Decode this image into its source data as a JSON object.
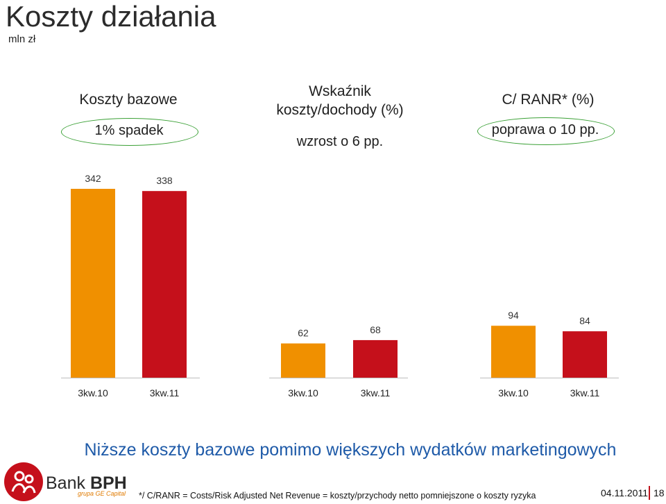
{
  "page": {
    "title": "Koszty działania",
    "unit": "mln zł"
  },
  "panels": [
    {
      "title_line1": "Koszty bazowe",
      "title_line2": "",
      "note": "1% spadek"
    },
    {
      "title_line1": "Wskaźnik",
      "title_line2": "koszty/dochody (%)",
      "note": "wzrost o 6 pp."
    },
    {
      "title_line1": "C/ RANR* (%)",
      "title_line2": "",
      "note": "poprawa o 10 pp."
    }
  ],
  "colors": {
    "orange": "#f09000",
    "red": "#c5101b",
    "highlight_ellipse": "#3aa035",
    "headline": "#1e5aa8"
  },
  "chart_data": [
    {
      "type": "bar",
      "categories": [
        "3kw.10",
        "3kw.11"
      ],
      "values": [
        342,
        338
      ],
      "ylim": [
        0,
        342
      ]
    },
    {
      "type": "bar",
      "categories": [
        "3kw.10",
        "3kw.11"
      ],
      "values": [
        62,
        68
      ],
      "ylim": [
        0,
        342
      ]
    },
    {
      "type": "bar",
      "categories": [
        "3kw.10",
        "3kw.11"
      ],
      "values": [
        94,
        84
      ],
      "ylim": [
        0,
        342
      ]
    }
  ],
  "headline": "Niższe koszty bazowe pomimo większych wydatków marketingowych",
  "footer": {
    "footnote": "*/ C/RANR = Costs/Risk Adjusted Net Revenue = koszty/przychody netto pomniejszone o koszty ryzyka",
    "date": "04.11.2011",
    "page_number": "18",
    "brand_plain": "Bank ",
    "brand_bold": "BPH",
    "brand_sub": "grupa GE Capital"
  }
}
